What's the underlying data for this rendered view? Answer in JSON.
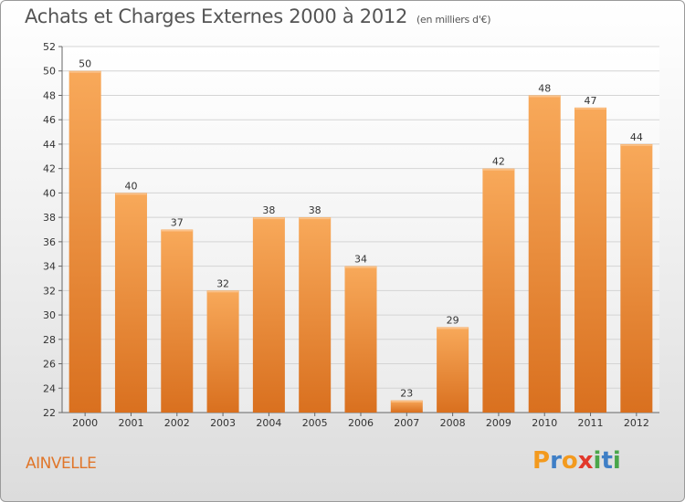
{
  "header": {
    "title": "Achats et Charges Externes 2000 à 2012",
    "subtitle": "(en milliers d'€)"
  },
  "footer": {
    "commune": "AINVELLE",
    "logo_letters": [
      "P",
      "r",
      "o",
      "x",
      "i",
      "t",
      "i"
    ],
    "logo_colors": [
      "#f39a1e",
      "#3f7fc6",
      "#f39a1e",
      "#e2382b",
      "#4aa64a",
      "#3f7fc6",
      "#4aa64a"
    ]
  },
  "chart_data": {
    "type": "bar",
    "title": "Achats et Charges Externes 2000 à 2012",
    "subtitle": "(en milliers d'€)",
    "categories": [
      "2000",
      "2001",
      "2002",
      "2003",
      "2004",
      "2005",
      "2006",
      "2007",
      "2008",
      "2009",
      "2010",
      "2011",
      "2012"
    ],
    "values": [
      50,
      40,
      37,
      32,
      38,
      38,
      34,
      23,
      29,
      42,
      48,
      47,
      44
    ],
    "ylim": [
      22,
      52
    ],
    "yticks": [
      22,
      24,
      26,
      28,
      30,
      32,
      34,
      36,
      38,
      40,
      42,
      44,
      46,
      48,
      50,
      52
    ],
    "grid": true,
    "bar_color": "#f0923a"
  }
}
